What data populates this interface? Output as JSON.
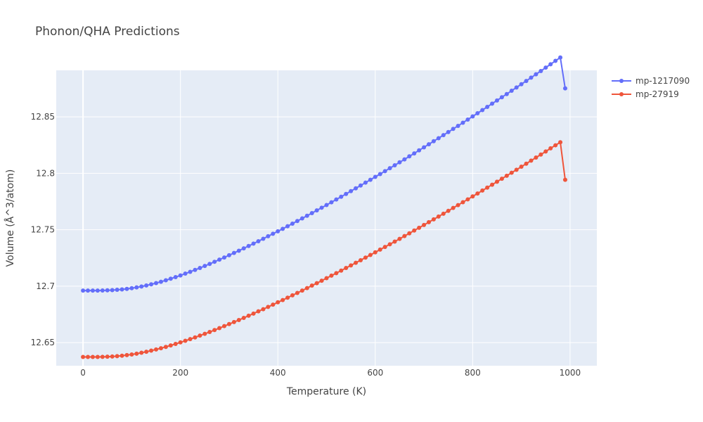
{
  "chart_data": {
    "type": "line",
    "title": "Phonon/QHA Predictions",
    "xlabel": "Temperature (K)",
    "ylabel": "Volume (Å^3/atom)",
    "xlim": [
      -55,
      1055
    ],
    "ylim": [
      12.6295,
      12.8912
    ],
    "x_ticks": [
      0,
      200,
      400,
      600,
      800,
      1000
    ],
    "x_tick_labels": [
      "0",
      "200",
      "400",
      "600",
      "800",
      "1000"
    ],
    "y_ticks": [
      12.65,
      12.7,
      12.75,
      12.8,
      12.85
    ],
    "y_tick_labels": [
      "12.65",
      "12.7",
      "12.75",
      "12.8",
      "12.85"
    ],
    "grid": true,
    "legend_position": "top-right",
    "x": [
      0,
      10,
      20,
      30,
      40,
      50,
      60,
      70,
      80,
      90,
      100,
      110,
      120,
      130,
      140,
      150,
      160,
      170,
      180,
      190,
      200,
      210,
      220,
      230,
      240,
      250,
      260,
      270,
      280,
      290,
      300,
      310,
      320,
      330,
      340,
      350,
      360,
      370,
      380,
      390,
      400,
      410,
      420,
      430,
      440,
      450,
      460,
      470,
      480,
      490,
      500,
      510,
      520,
      530,
      540,
      550,
      560,
      570,
      580,
      590,
      600,
      610,
      620,
      630,
      640,
      650,
      660,
      670,
      680,
      690,
      700,
      710,
      720,
      730,
      740,
      750,
      760,
      770,
      780,
      790,
      800,
      810,
      820,
      830,
      840,
      850,
      860,
      870,
      880,
      890,
      900,
      910,
      920,
      930,
      940,
      950,
      960,
      970,
      980,
      990
    ],
    "series": [
      {
        "name": "mp-1217090",
        "color": "#636efa",
        "values": [
          12.6961,
          12.6961,
          12.6961,
          12.6961,
          12.6962,
          12.6963,
          12.6965,
          12.6968,
          12.6971,
          12.6976,
          12.6982,
          12.6989,
          12.6997,
          12.7006,
          12.7016,
          12.7027,
          12.7039,
          12.7052,
          12.7066,
          12.708,
          12.7095,
          12.7111,
          12.7127,
          12.7144,
          12.7161,
          12.7179,
          12.7197,
          12.7216,
          12.7235,
          12.7254,
          12.7274,
          12.7294,
          12.7314,
          12.7335,
          12.7356,
          12.7377,
          12.7398,
          12.742,
          12.7442,
          12.7464,
          12.7486,
          12.7508,
          12.7531,
          12.7554,
          12.7577,
          12.76,
          12.7624,
          12.7647,
          12.7671,
          12.7695,
          12.7719,
          12.7743,
          12.7768,
          12.7792,
          12.7817,
          12.7842,
          12.7867,
          12.7892,
          12.7917,
          12.7942,
          12.7968,
          12.7993,
          12.8019,
          12.8045,
          12.8071,
          12.8097,
          12.8123,
          12.815,
          12.8176,
          12.8203,
          12.823,
          12.8257,
          12.8284,
          12.8311,
          12.8338,
          12.8365,
          12.8393,
          12.842,
          12.8448,
          12.8476,
          12.8504,
          12.8532,
          12.856,
          12.8588,
          12.8617,
          12.8645,
          12.8674,
          12.8702,
          12.8731,
          12.876,
          12.8789,
          12.8818,
          12.8847,
          12.8877,
          12.8906,
          12.8936,
          12.8966,
          12.8996,
          12.9026,
          12.8752
        ]
      },
      {
        "name": "mp-27919",
        "color": "#ef553b",
        "values": [
          12.6373,
          12.6373,
          12.6373,
          12.6373,
          12.6374,
          12.6375,
          12.6377,
          12.638,
          12.6384,
          12.6389,
          12.6395,
          12.6402,
          12.641,
          12.6419,
          12.6429,
          12.6439,
          12.645,
          12.6462,
          12.6475,
          12.6488,
          12.6502,
          12.6516,
          12.6531,
          12.6546,
          12.6562,
          12.6578,
          12.6594,
          12.6611,
          12.6628,
          12.6646,
          12.6664,
          12.6682,
          12.67,
          12.6719,
          12.6738,
          12.6757,
          12.6777,
          12.6796,
          12.6816,
          12.6836,
          12.6857,
          12.6877,
          12.6898,
          12.6919,
          12.694,
          12.6961,
          12.6983,
          12.7005,
          12.7026,
          12.7048,
          12.7071,
          12.7093,
          12.7115,
          12.7138,
          12.7161,
          12.7184,
          12.7207,
          12.723,
          12.7253,
          12.7276,
          12.73,
          12.7324,
          12.7347,
          12.7371,
          12.7395,
          12.7419,
          12.7444,
          12.7468,
          12.7493,
          12.7517,
          12.7542,
          12.7567,
          12.7592,
          12.7617,
          12.7642,
          12.7667,
          12.7693,
          12.7718,
          12.7744,
          12.7769,
          12.7795,
          12.7821,
          12.7847,
          12.7873,
          12.7899,
          12.7925,
          12.7952,
          12.7978,
          12.8005,
          12.8031,
          12.8058,
          12.8085,
          12.8112,
          12.8139,
          12.8166,
          12.8193,
          12.8221,
          12.8248,
          12.8275,
          12.7942
        ]
      }
    ]
  }
}
